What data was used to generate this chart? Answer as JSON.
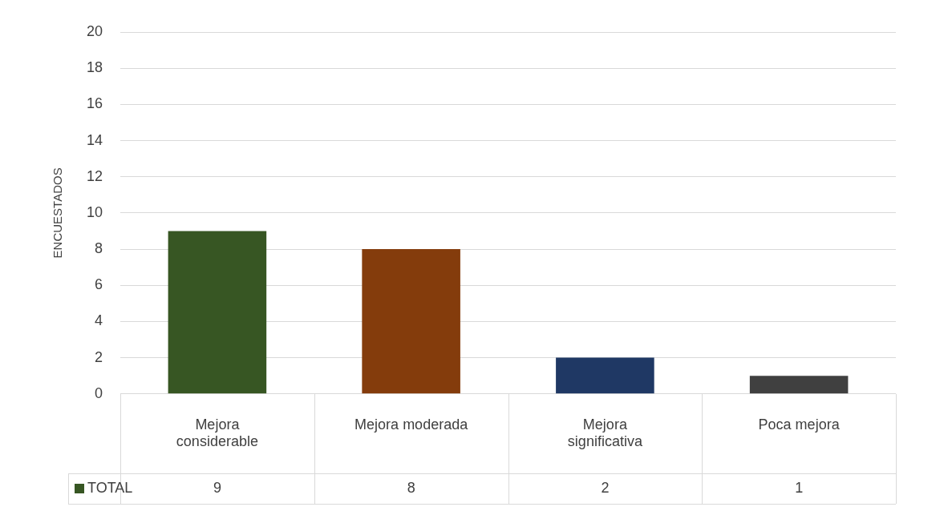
{
  "chart_data": {
    "type": "bar",
    "ylabel": "ENCUESTADOS",
    "categories": [
      "Mejora considerable",
      "Mejora moderada",
      "Mejora significativa",
      "Poca mejora"
    ],
    "series": [
      {
        "name": "TOTAL",
        "color": "#375623",
        "colors": [
          "#375623",
          "#843c0c",
          "#1f3864",
          "#404040"
        ],
        "values": [
          9,
          8,
          2,
          1
        ]
      }
    ],
    "ylim": [
      0,
      20
    ],
    "yticks": [
      0,
      2,
      4,
      6,
      8,
      10,
      12,
      14,
      16,
      18,
      20
    ],
    "grid": "y",
    "legend": "bottom",
    "data_labels": true
  }
}
